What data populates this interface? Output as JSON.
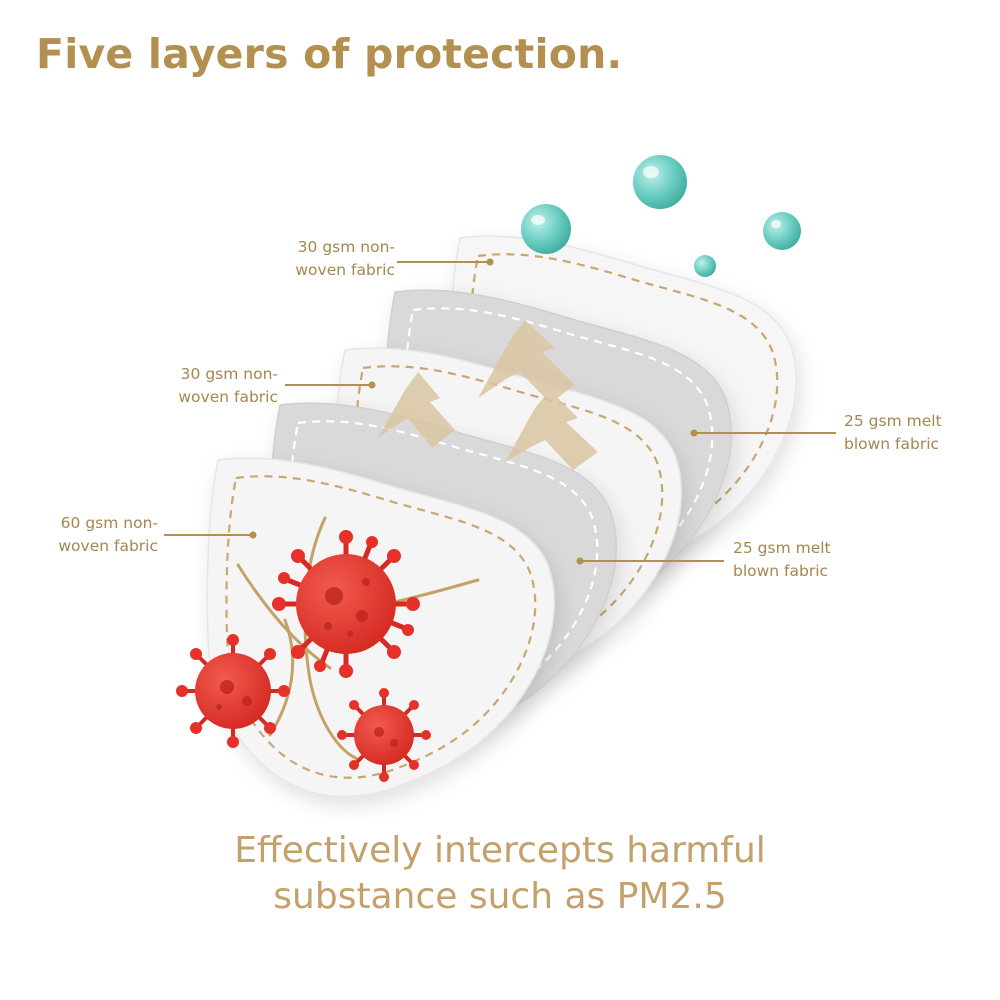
{
  "title": "Five layers of protection.",
  "layers": [
    {
      "line1": "30 gsm non-",
      "line2": "woven fabric"
    },
    {
      "line1": "25 gsm melt",
      "line2": "blown fabric"
    },
    {
      "line1": "30 gsm non-",
      "line2": "woven fabric"
    },
    {
      "line1": "25 gsm melt",
      "line2": "blown fabric"
    },
    {
      "line1": "60 gsm non-",
      "line2": "woven fabric"
    }
  ],
  "caption": {
    "line1": "Effectively intercepts harmful",
    "line2": "substance such as PM2.5"
  },
  "colors": {
    "title": "#b3904f",
    "label": "#a48650",
    "caption": "#c4a06b",
    "leader_line": "#b3904f",
    "stitch": "#c9a870",
    "fabric_white": "#f5f5f5",
    "fabric_gray": "#d9d9d9",
    "virus": "#e5312a",
    "droplet": "#6fcfc5",
    "arrow": "#d9c6a2"
  },
  "icons": [
    "virus-icon",
    "water-droplet-icon",
    "airflow-arrow-icon"
  ]
}
